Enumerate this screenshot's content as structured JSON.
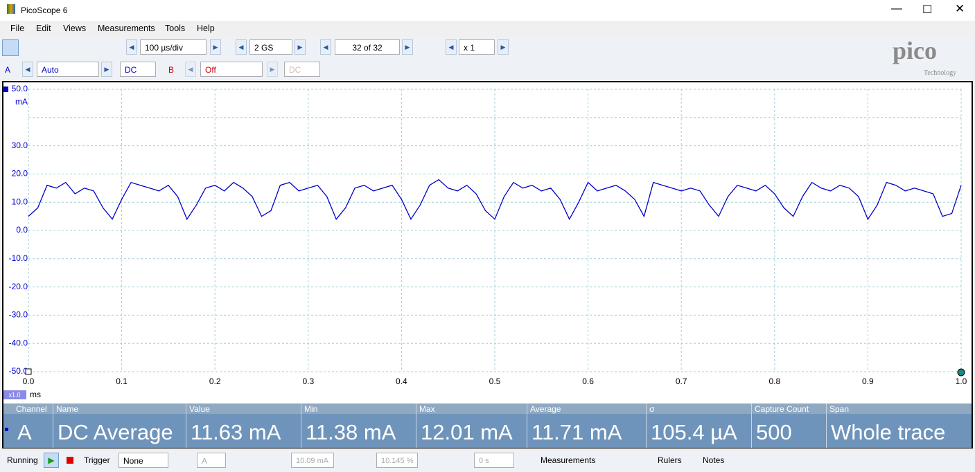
{
  "window": {
    "title": "PicoScope 6"
  },
  "menu": [
    "File",
    "Edit",
    "Views",
    "Measurements",
    "Tools",
    "Help"
  ],
  "toolbar": {
    "timebase": "100 µs/div",
    "samples": "2 GS",
    "buffer": "32 of 32",
    "zoom": "x 1",
    "logo": "pico",
    "logo_sub": "Technology"
  },
  "channels": {
    "a_name": "A",
    "a_range": "Auto",
    "a_coupling": "DC",
    "b_name": "B",
    "b_range": "Off",
    "b_coupling": "DC"
  },
  "chart_data": {
    "type": "line",
    "x_unit": "ms",
    "y_unit": "mA",
    "zoom_label": "x1.0",
    "color": "#0000c8",
    "grid": true,
    "xlim": [
      0,
      1
    ],
    "ylim": [
      -50,
      50
    ],
    "xticks": [
      {
        "value": 0,
        "label": "0.0"
      },
      0.1,
      0.2,
      0.3,
      0.4,
      0.5,
      0.6,
      0.7,
      0.8,
      0.9,
      {
        "value": 1,
        "label": "1.0"
      }
    ],
    "yticks": [
      {
        "value": 50,
        "label": "50.0"
      },
      {
        "value": 40,
        "label": null
      },
      {
        "value": 30,
        "label": "30.0"
      },
      {
        "value": 20,
        "label": "20.0"
      },
      {
        "value": 10,
        "label": "10.0"
      },
      {
        "value": 0,
        "label": "0.0"
      },
      {
        "value": -10,
        "label": "-10.0"
      },
      {
        "value": -20,
        "label": "-20.0"
      },
      {
        "value": -30,
        "label": "-30.0"
      },
      {
        "value": -40,
        "label": "-40.0"
      },
      {
        "value": -50,
        "label": "-50.0"
      }
    ],
    "x": [
      0,
      0.01,
      0.02,
      0.03,
      0.04,
      0.05,
      0.06,
      0.07,
      0.08,
      0.09,
      0.1,
      0.11,
      0.12,
      0.13,
      0.14,
      0.15,
      0.16,
      0.17,
      0.18,
      0.19,
      0.2,
      0.21,
      0.22,
      0.23,
      0.24,
      0.25,
      0.26,
      0.27,
      0.28,
      0.29,
      0.3,
      0.31,
      0.32,
      0.33,
      0.34,
      0.35,
      0.36,
      0.37,
      0.38,
      0.39,
      0.4,
      0.41,
      0.42,
      0.43,
      0.44,
      0.45,
      0.46,
      0.47,
      0.48,
      0.49,
      0.5,
      0.51,
      0.52,
      0.53,
      0.54,
      0.55,
      0.56,
      0.57,
      0.58,
      0.59,
      0.6,
      0.61,
      0.62,
      0.63,
      0.64,
      0.65,
      0.66,
      0.67,
      0.68,
      0.69,
      0.7,
      0.71,
      0.72,
      0.73,
      0.74,
      0.75,
      0.76,
      0.77,
      0.78,
      0.79,
      0.8,
      0.81,
      0.82,
      0.83,
      0.84,
      0.85,
      0.86,
      0.87,
      0.88,
      0.89,
      0.9,
      0.91,
      0.92,
      0.93,
      0.94,
      0.95,
      0.96,
      0.97,
      0.98,
      0.99,
      1
    ],
    "values": [
      5,
      8,
      16,
      15,
      17,
      13,
      15,
      14,
      8,
      4,
      11,
      17,
      16,
      15,
      14,
      16,
      12,
      4,
      9,
      15,
      16,
      14,
      17,
      15,
      12,
      5,
      7,
      16,
      17,
      14,
      15,
      16,
      12,
      4,
      8,
      15,
      16,
      14,
      15,
      16,
      11,
      4,
      9,
      16,
      18,
      15,
      14,
      16,
      13,
      7,
      4,
      12,
      17,
      15,
      16,
      14,
      15,
      11,
      4,
      10,
      17,
      14,
      15,
      16,
      14,
      11,
      5,
      17,
      16,
      15,
      14,
      15,
      14,
      9,
      5,
      12,
      16,
      15,
      14,
      16,
      13,
      8,
      5,
      12,
      17,
      15,
      14,
      16,
      15,
      12,
      4,
      9,
      17,
      16,
      14,
      15,
      14,
      13,
      5,
      6,
      16
    ]
  },
  "measurements": {
    "headers": [
      "Channel",
      "Name",
      "Value",
      "Min",
      "Max",
      "Average",
      "σ",
      "Capture Count",
      "Span"
    ],
    "rows": [
      [
        "A",
        "DC Average",
        "11.63 mA",
        "11.38 mA",
        "12.01 mA",
        "11.71 mA",
        "105.4 µA",
        "500",
        "Whole trace"
      ]
    ]
  },
  "status": {
    "state": "Running",
    "trigger_label": "Trigger",
    "trigger_mode": "None",
    "trigger_channel": "A",
    "trigger_level": "10.09 mA",
    "pre_trigger": "10.145 %",
    "delay": "0 s",
    "measurements": "Measurements",
    "rulers": "Rulers",
    "notes": "Notes"
  }
}
